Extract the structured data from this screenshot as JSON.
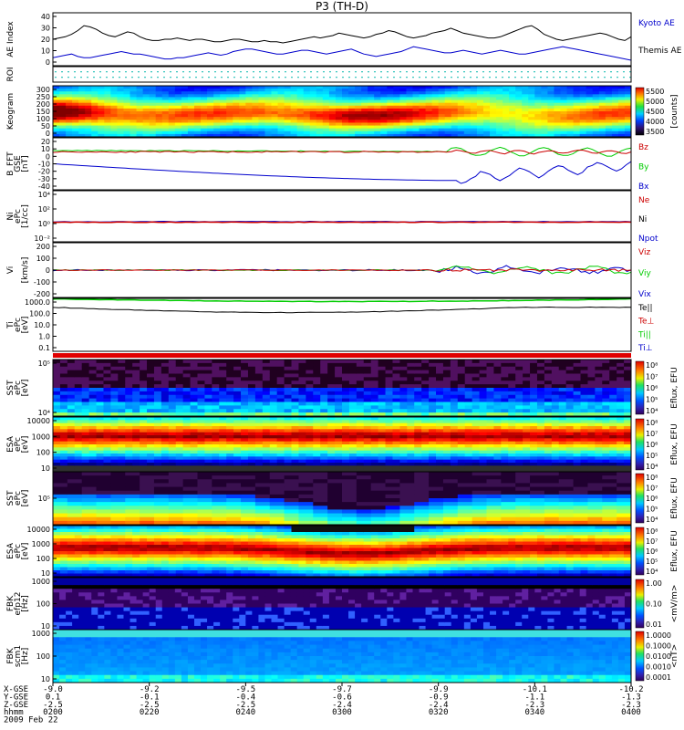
{
  "title": "P3 (TH-D)",
  "chart_data": [
    {
      "type": "line",
      "id": "ae",
      "ylabel": "AE Index",
      "yticks": [
        "40",
        "30",
        "20",
        "10",
        "0"
      ],
      "series": [
        {
          "name": "Kyoto AE",
          "color": "#0000cc",
          "values": [
            5,
            6,
            7,
            8,
            6,
            5,
            5,
            6,
            7,
            8,
            9,
            10,
            9,
            8,
            8,
            7,
            6,
            5,
            4,
            4,
            5,
            5,
            6,
            7,
            8,
            9,
            8,
            7,
            8,
            10,
            11,
            12,
            12,
            11,
            10,
            9,
            8,
            8,
            9,
            10,
            11,
            11,
            10,
            9,
            8,
            9,
            10,
            11,
            12,
            10,
            8,
            7,
            6,
            7,
            8,
            9,
            10,
            12,
            14,
            13,
            12,
            11,
            10,
            9,
            9,
            10,
            11,
            10,
            9,
            8,
            9,
            10,
            11,
            10,
            9,
            8,
            8,
            9,
            10,
            11,
            12,
            13,
            14,
            13,
            12,
            11,
            10,
            9,
            8,
            7,
            6,
            5,
            4,
            3
          ]
        },
        {
          "name": "Themis AE",
          "color": "#000000",
          "values": [
            20,
            21,
            22,
            24,
            27,
            31,
            30,
            28,
            25,
            23,
            22,
            24,
            26,
            25,
            22,
            20,
            19,
            19,
            20,
            20,
            21,
            20,
            19,
            20,
            20,
            19,
            18,
            18,
            19,
            20,
            20,
            19,
            18,
            18,
            19,
            18,
            18,
            17,
            18,
            19,
            20,
            21,
            22,
            21,
            22,
            23,
            25,
            24,
            23,
            22,
            21,
            22,
            24,
            25,
            27,
            26,
            24,
            22,
            21,
            22,
            23,
            25,
            26,
            27,
            29,
            27,
            25,
            24,
            23,
            22,
            21,
            21,
            22,
            24,
            26,
            28,
            30,
            31,
            28,
            24,
            22,
            20,
            19,
            20,
            21,
            22,
            23,
            24,
            25,
            24,
            22,
            20,
            19,
            22
          ]
        }
      ]
    },
    {
      "type": "heatmap",
      "id": "roi",
      "ylabel": "ROI"
    },
    {
      "type": "heatmap",
      "id": "keo",
      "ylabel": "Keogram",
      "yticks": [
        "300",
        "250",
        "200",
        "150",
        "100",
        "50",
        "0"
      ],
      "colorbar": {
        "label": "[counts]",
        "ticks": [
          "5500",
          "5000",
          "4500",
          "4000",
          "3500"
        ]
      }
    },
    {
      "type": "line",
      "id": "bfield",
      "ylabel": "B_FFT",
      "units": "[nT]",
      "sub": "GSE",
      "yticks": [
        "20",
        "10",
        "0",
        "-10",
        "-20",
        "-30",
        "-40"
      ],
      "series": [
        {
          "name": "Bz",
          "color": "#cc0000"
        },
        {
          "name": "By",
          "color": "#00cc00"
        },
        {
          "name": "Bx",
          "color": "#0000cc"
        }
      ]
    },
    {
      "type": "line",
      "id": "density",
      "ylabel": "Ni",
      "units": "[1/cc]",
      "sub": "ePc",
      "yticks": [
        "10⁴",
        "10²",
        "10⁰",
        "10⁻²"
      ],
      "series": [
        {
          "name": "Ne",
          "color": "#cc0000"
        },
        {
          "name": "Ni",
          "color": "#000000"
        },
        {
          "name": "Npot",
          "color": "#0000cc"
        }
      ]
    },
    {
      "type": "line",
      "id": "vel",
      "ylabel": "Vi",
      "units": "[km/s]",
      "yticks": [
        "200",
        "100",
        "0",
        "-100",
        "-200"
      ],
      "series": [
        {
          "name": "Viz",
          "color": "#cc0000"
        },
        {
          "name": "Viy",
          "color": "#00cc00"
        },
        {
          "name": "Vix",
          "color": "#0000cc"
        }
      ]
    },
    {
      "type": "line",
      "id": "temp",
      "ylabel": "Ti",
      "units": "[eV]",
      "sub": "ePc",
      "yticks": [
        "1000.0",
        "100.0",
        "10.0",
        "1.0",
        "0.1"
      ],
      "series": [
        {
          "name": "Te||",
          "color": "#000000"
        },
        {
          "name": "Te⊥",
          "color": "#cc0000"
        },
        {
          "name": "Ti||",
          "color": "#00cc00"
        },
        {
          "name": "Ti⊥",
          "color": "#0000cc"
        }
      ]
    },
    {
      "type": "heatmap",
      "id": "sst1",
      "ylabel": "SST",
      "units": "[eV]",
      "sub": "ePc",
      "yticks": [
        "10⁵",
        "10⁴"
      ],
      "colorbar": {
        "label": "Eflux, EFU",
        "ticks": [
          "10⁸",
          "10⁷",
          "10⁶",
          "10⁵",
          "10⁴"
        ]
      }
    },
    {
      "type": "heatmap",
      "id": "esa1",
      "ylabel": "ESA",
      "units": "[eV]",
      "sub": "ePc",
      "yticks": [
        "10000",
        "1000",
        "100",
        "10"
      ],
      "colorbar": {
        "label": "Eflux, EFU",
        "ticks": [
          "10⁸",
          "10⁷",
          "10⁶",
          "10⁵",
          "10⁴"
        ]
      }
    },
    {
      "type": "heatmap",
      "id": "sst2",
      "ylabel": "SST",
      "units": "[eV]",
      "sub": "ePc",
      "yticks": [
        "10⁵"
      ],
      "colorbar": {
        "label": "Eflux, EFU",
        "ticks": [
          "10⁸",
          "10⁷",
          "10⁶",
          "10⁵",
          "10⁴"
        ]
      }
    },
    {
      "type": "heatmap",
      "id": "esa2",
      "ylabel": "ESA",
      "units": "[eV]",
      "sub": "ePc",
      "yticks": [
        "10000",
        "1000",
        "100",
        "10"
      ],
      "colorbar": {
        "label": "Eflux, EFU",
        "ticks": [
          "10⁸",
          "10⁷",
          "10⁶",
          "10⁵",
          "10⁴"
        ]
      }
    },
    {
      "type": "heatmap",
      "id": "fbk1",
      "ylabel": "FBK",
      "units": "[Hz]",
      "sub": "efp12",
      "yticks": [
        "1000",
        "100",
        "10"
      ],
      "colorbar": {
        "label": "<mV/m>",
        "ticks": [
          "1.00",
          "0.10",
          "0.01"
        ]
      }
    },
    {
      "type": "heatmap",
      "id": "fbk2",
      "ylabel": "FBK",
      "units": "[Hz]",
      "sub": "scm1",
      "yticks": [
        "1000",
        "100",
        "10"
      ],
      "colorbar": {
        "label": "<nT>",
        "ticks": [
          "1.0000",
          "0.1000",
          "0.0100",
          "0.0010",
          "0.0001"
        ]
      }
    }
  ],
  "xaxis": {
    "row_labels": [
      "X-GSE",
      "Y-GSE",
      "Z-GSE",
      "hhmm",
      "2009 Feb 22"
    ],
    "columns": [
      [
        "-9.0",
        "0.1",
        "-2.5",
        "0200"
      ],
      [
        "-9.2",
        "-0.1",
        "-2.5",
        "0220"
      ],
      [
        "-9.5",
        "-0.4",
        "-2.5",
        "0240"
      ],
      [
        "-9.7",
        "-0.6",
        "-2.4",
        "0300"
      ],
      [
        "-9.9",
        "-0.9",
        "-2.4",
        "0320"
      ],
      [
        "-10.1",
        "-1.1",
        "-2.3",
        "0340"
      ],
      [
        "-10.2",
        "-1.3",
        "-2.3",
        "0400"
      ]
    ]
  }
}
